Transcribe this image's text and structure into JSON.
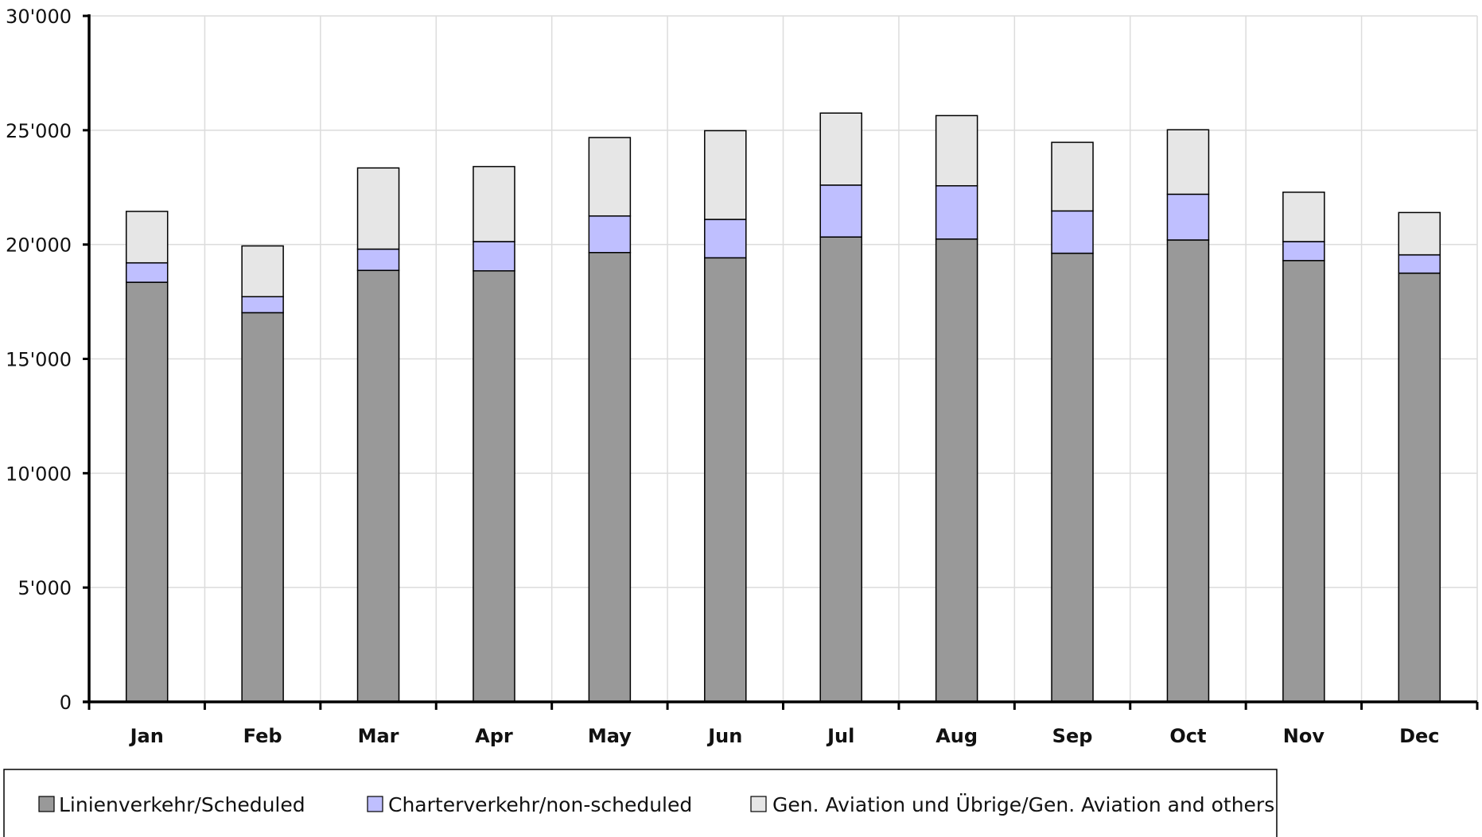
{
  "chart_data": {
    "type": "bar",
    "stacked": true,
    "categories": [
      "Jan",
      "Feb",
      "Mar",
      "Apr",
      "May",
      "Jun",
      "Jul",
      "Aug",
      "Sep",
      "Oct",
      "Nov",
      "Dec"
    ],
    "series": [
      {
        "name": "Linienverkehr/Scheduled",
        "color": "#999999",
        "values": [
          18350,
          17020,
          18870,
          18850,
          19650,
          19420,
          20330,
          20240,
          19620,
          20200,
          19300,
          18750
        ]
      },
      {
        "name": "Charterverkehr/non-scheduled",
        "color": "#bfbfff",
        "values": [
          850,
          700,
          930,
          1280,
          1600,
          1680,
          2270,
          2330,
          1850,
          2000,
          830,
          800
        ]
      },
      {
        "name": "Gen. Aviation und Übrige/Gen. Aviation and others",
        "color": "#e6e6e6",
        "values": [
          2250,
          2220,
          3550,
          3280,
          3430,
          3880,
          3150,
          3070,
          3000,
          2820,
          2160,
          1850
        ]
      }
    ],
    "ylim": [
      0,
      30000
    ],
    "yticks": [
      0,
      5000,
      10000,
      15000,
      20000,
      25000,
      30000
    ],
    "ytick_labels": [
      "0",
      "5'000",
      "10'000",
      "15'000",
      "20'000",
      "25'000",
      "30'000"
    ],
    "grid": true,
    "legend_position": "bottom"
  }
}
